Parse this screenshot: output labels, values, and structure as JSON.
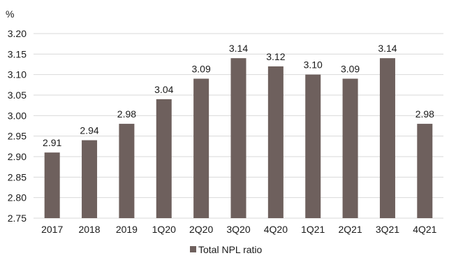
{
  "chart_data": {
    "type": "bar",
    "unit_label": "%",
    "categories": [
      "2017",
      "2018",
      "2019",
      "1Q20",
      "2Q20",
      "3Q20",
      "4Q20",
      "1Q21",
      "2Q21",
      "3Q21",
      "4Q21"
    ],
    "series": [
      {
        "name": "Total NPL ratio",
        "values": [
          2.91,
          2.94,
          2.98,
          3.04,
          3.09,
          3.14,
          3.12,
          3.1,
          3.09,
          3.14,
          2.98
        ],
        "labels": [
          "2.91",
          "2.94",
          "2.98",
          "3.04",
          "3.09",
          "3.14",
          "3.12",
          "3.10",
          "3.09",
          "3.14",
          "2.98"
        ],
        "color": "#6e605d"
      }
    ],
    "ylim": [
      2.75,
      3.2
    ],
    "yticks": [
      "2.75",
      "2.80",
      "2.85",
      "2.90",
      "2.95",
      "3.00",
      "3.05",
      "3.10",
      "3.15",
      "3.20"
    ],
    "grid": true,
    "legend_position": "bottom"
  }
}
